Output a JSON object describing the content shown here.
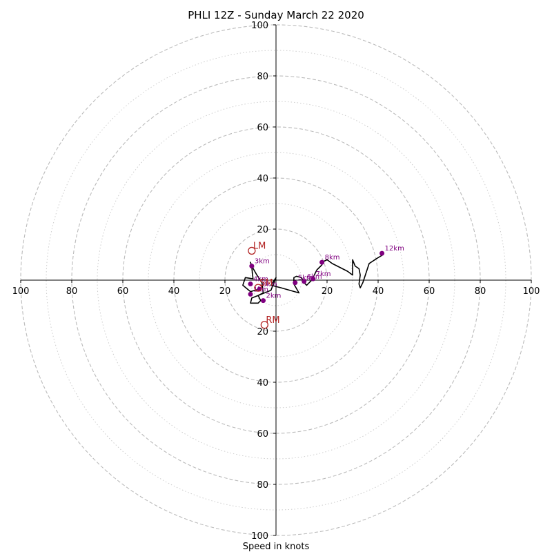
{
  "chart_data": {
    "type": "hodograph",
    "title": "PHLI 12Z - Sunday March 22 2020",
    "xlabel": "Speed in knots",
    "range": [
      -100,
      100
    ],
    "major_rings": [
      20,
      40,
      60,
      80,
      100
    ],
    "minor_rings": [
      10,
      30,
      50,
      70,
      90
    ],
    "tick_labels_x": [
      "100",
      "80",
      "60",
      "40",
      "20",
      "20",
      "40",
      "60",
      "80",
      "100"
    ],
    "tick_values_x": [
      -100,
      -80,
      -60,
      -40,
      -20,
      20,
      40,
      60,
      80,
      100
    ],
    "tick_labels_y": [
      "100",
      "80",
      "60",
      "40",
      "20",
      "20",
      "40",
      "60",
      "80",
      "100"
    ],
    "tick_values_y": [
      100,
      80,
      60,
      40,
      20,
      -20,
      -40,
      -60,
      -80,
      -100
    ],
    "hodograph_line": {
      "color": "#000000",
      "points": [
        [
          -6.5,
          -3.5
        ],
        [
          -10,
          -4.5
        ],
        [
          -13,
          -2
        ],
        [
          -12,
          1
        ],
        [
          -9,
          0.5
        ],
        [
          -9.5,
          5
        ],
        [
          -10,
          7
        ],
        [
          -9.5,
          5.5
        ],
        [
          -7.5,
          2
        ],
        [
          -5.5,
          -1
        ],
        [
          -5,
          -5
        ],
        [
          -7,
          -6
        ],
        [
          -9.5,
          -7
        ],
        [
          -10,
          -9
        ],
        [
          -9,
          -9
        ],
        [
          -7,
          -9
        ],
        [
          -6,
          -8
        ],
        [
          -7,
          -6
        ],
        [
          -2,
          -4
        ],
        [
          0,
          1
        ],
        [
          -2,
          -2
        ],
        [
          2,
          -3
        ],
        [
          9,
          -5
        ],
        [
          7,
          -1.5
        ],
        [
          7,
          1
        ],
        [
          8,
          1.5
        ],
        [
          10,
          1
        ],
        [
          11,
          -1
        ],
        [
          12,
          -2
        ],
        [
          13,
          -1
        ],
        [
          14,
          0
        ],
        [
          15,
          2
        ],
        [
          16,
          4
        ],
        [
          17,
          5
        ],
        [
          18,
          6
        ],
        [
          18,
          7
        ],
        [
          20,
          8
        ],
        [
          22,
          6.5
        ],
        [
          25,
          5
        ],
        [
          28,
          3.5
        ],
        [
          30,
          2
        ],
        [
          30,
          8
        ],
        [
          31,
          5.5
        ],
        [
          32.5,
          4.5
        ],
        [
          33,
          2
        ],
        [
          32.5,
          -1.5
        ],
        [
          33,
          -3
        ],
        [
          34,
          -1
        ],
        [
          35,
          2
        ],
        [
          36.5,
          6.5
        ],
        [
          39.5,
          8.5
        ],
        [
          42,
          10
        ]
      ]
    },
    "height_markers": {
      "color": "#800080",
      "points": [
        {
          "label": "0km",
          "u": -6.5,
          "v": -3.5
        },
        {
          "label": "1km",
          "u": -10,
          "v": -5.5
        },
        {
          "label": "2km",
          "u": -5,
          "v": -8
        },
        {
          "label": "3km",
          "u": -9.5,
          "v": 5.5
        },
        {
          "label": "4km",
          "u": -10,
          "v": -1.5
        },
        {
          "label": "5km",
          "u": 7.5,
          "v": -1
        },
        {
          "label": "6km",
          "u": 11,
          "v": -0.5
        },
        {
          "label": "7km",
          "u": 14.5,
          "v": 0.5
        },
        {
          "label": "8km",
          "u": 18,
          "v": 7
        },
        {
          "label": "12km",
          "u": 41.5,
          "v": 10.5
        }
      ]
    },
    "storm_motion": {
      "color": "#b22222",
      "points": [
        {
          "label": "LM",
          "u": -9.5,
          "v": 11.5
        },
        {
          "label": "RM",
          "u": -4.5,
          "v": -17.5
        },
        {
          "label": "SM",
          "u": -7,
          "v": -3
        }
      ]
    },
    "grid": true,
    "axis_color": "#000000",
    "ring_color": "#bbbbbb"
  }
}
